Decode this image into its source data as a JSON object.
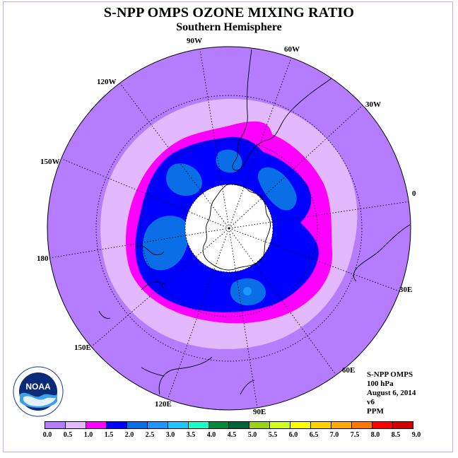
{
  "title": "S-NPP OMPS OZONE MIXING RATIO",
  "subtitle": "Southern Hemisphere",
  "longitude_labels": [
    "90W",
    "60W",
    "30W",
    "0",
    "30E",
    "60E",
    "90E",
    "120E",
    "150E",
    "180",
    "150W",
    "120W"
  ],
  "info": {
    "instrument": "S-NPP OMPS",
    "level": "100 hPa",
    "date": "August 6, 2014",
    "version": "v6",
    "units": "PPM"
  },
  "logo_text": "NOAA",
  "colorbar": {
    "ticks": [
      "0.0",
      "0.5",
      "1.0",
      "1.5",
      "2.0",
      "2.5",
      "3.0",
      "3.5",
      "4.0",
      "4.5",
      "5.0",
      "5.5",
      "6.0",
      "6.5",
      "7.0",
      "7.5",
      "8.0",
      "8.5",
      "9.0"
    ],
    "colors": [
      "#b57cff",
      "#e2b8ff",
      "#ff00ff",
      "#0000ff",
      "#0a6fe6",
      "#1e96ff",
      "#1ec8ff",
      "#19ffc8",
      "#008c3c",
      "#00643c",
      "#9bd214",
      "#d2ff1e",
      "#ffff00",
      "#ffd200",
      "#ffaa00",
      "#ff7800",
      "#ff0000",
      "#d20000",
      "#8c5a3c"
    ]
  }
}
